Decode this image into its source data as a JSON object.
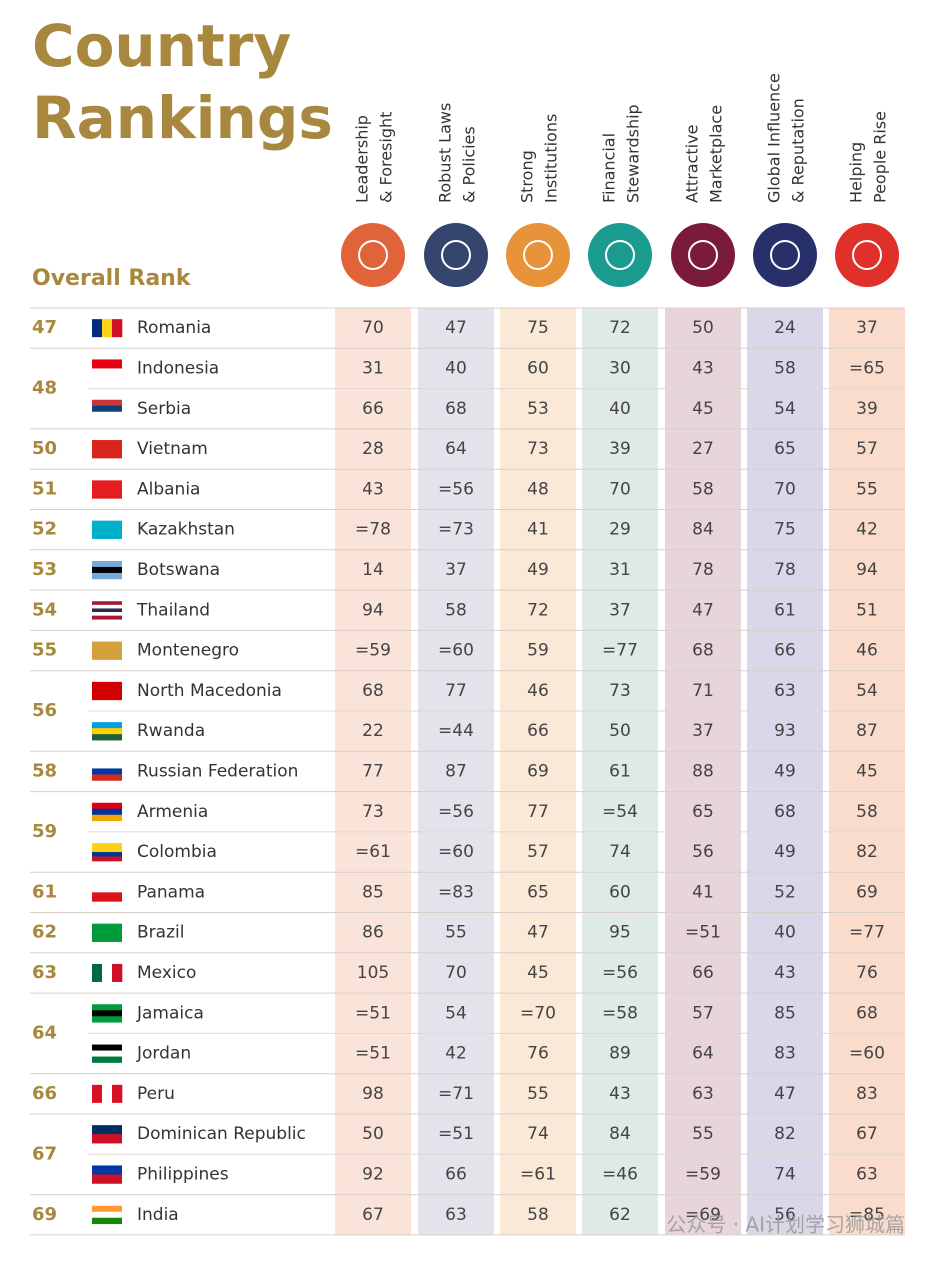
{
  "header": {
    "title": [
      "Country",
      "Rankings"
    ],
    "rank_label": "Overall Rank",
    "columns": [
      [
        "Leadership",
        "& Foresight"
      ],
      [
        "Robust Laws",
        "& Policies"
      ],
      [
        "Strong",
        "Institutions"
      ],
      [
        "Financial",
        "Stewardship"
      ],
      [
        "Attractive",
        "Marketplace"
      ],
      [
        "Global Influence",
        "& Reputation"
      ],
      [
        "Helping",
        "People Rise"
      ]
    ]
  },
  "groups": [
    {
      "rank": "47",
      "rows": [
        {
          "country": "Romania",
          "scores": [
            "70",
            "47",
            "75",
            "72",
            "50",
            "24",
            "37"
          ]
        }
      ]
    },
    {
      "rank": "48",
      "rows": [
        {
          "country": "Indonesia",
          "scores": [
            "31",
            "40",
            "60",
            "30",
            "43",
            "58",
            "=65"
          ]
        },
        {
          "country": "Serbia",
          "scores": [
            "66",
            "68",
            "53",
            "40",
            "45",
            "54",
            "39"
          ]
        }
      ]
    },
    {
      "rank": "50",
      "rows": [
        {
          "country": "Vietnam",
          "scores": [
            "28",
            "64",
            "73",
            "39",
            "27",
            "65",
            "57"
          ]
        }
      ]
    },
    {
      "rank": "51",
      "rows": [
        {
          "country": "Albania",
          "scores": [
            "43",
            "=56",
            "48",
            "70",
            "58",
            "70",
            "55"
          ]
        }
      ]
    },
    {
      "rank": "52",
      "rows": [
        {
          "country": "Kazakhstan",
          "scores": [
            "=78",
            "=73",
            "41",
            "29",
            "84",
            "75",
            "42"
          ]
        }
      ]
    },
    {
      "rank": "53",
      "rows": [
        {
          "country": "Botswana",
          "scores": [
            "14",
            "37",
            "49",
            "31",
            "78",
            "78",
            "94"
          ]
        }
      ]
    },
    {
      "rank": "54",
      "rows": [
        {
          "country": "Thailand",
          "scores": [
            "94",
            "58",
            "72",
            "37",
            "47",
            "61",
            "51"
          ]
        }
      ]
    },
    {
      "rank": "55",
      "rows": [
        {
          "country": "Montenegro",
          "scores": [
            "=59",
            "=60",
            "59",
            "=77",
            "68",
            "66",
            "46"
          ]
        }
      ]
    },
    {
      "rank": "56",
      "rows": [
        {
          "country": "North Macedonia",
          "scores": [
            "68",
            "77",
            "46",
            "73",
            "71",
            "63",
            "54"
          ]
        },
        {
          "country": "Rwanda",
          "scores": [
            "22",
            "=44",
            "66",
            "50",
            "37",
            "93",
            "87"
          ]
        }
      ]
    },
    {
      "rank": "58",
      "rows": [
        {
          "country": "Russian Federation",
          "scores": [
            "77",
            "87",
            "69",
            "61",
            "88",
            "49",
            "45"
          ]
        }
      ]
    },
    {
      "rank": "59",
      "rows": [
        {
          "country": "Armenia",
          "scores": [
            "73",
            "=56",
            "77",
            "=54",
            "65",
            "68",
            "58"
          ]
        },
        {
          "country": "Colombia",
          "scores": [
            "=61",
            "=60",
            "57",
            "74",
            "56",
            "49",
            "82"
          ]
        }
      ]
    },
    {
      "rank": "61",
      "rows": [
        {
          "country": "Panama",
          "scores": [
            "85",
            "=83",
            "65",
            "60",
            "41",
            "52",
            "69"
          ]
        }
      ]
    },
    {
      "rank": "62",
      "rows": [
        {
          "country": "Brazil",
          "scores": [
            "86",
            "55",
            "47",
            "95",
            "=51",
            "40",
            "=77"
          ]
        }
      ]
    },
    {
      "rank": "63",
      "rows": [
        {
          "country": "Mexico",
          "scores": [
            "105",
            "70",
            "45",
            "=56",
            "66",
            "43",
            "76"
          ]
        }
      ]
    },
    {
      "rank": "64",
      "rows": [
        {
          "country": "Jamaica",
          "scores": [
            "=51",
            "54",
            "=70",
            "=58",
            "57",
            "85",
            "68"
          ]
        },
        {
          "country": "Jordan",
          "scores": [
            "=51",
            "42",
            "76",
            "89",
            "64",
            "83",
            "=60"
          ]
        }
      ]
    },
    {
      "rank": "66",
      "rows": [
        {
          "country": "Peru",
          "scores": [
            "98",
            "=71",
            "55",
            "43",
            "63",
            "47",
            "83"
          ]
        }
      ]
    },
    {
      "rank": "67",
      "rows": [
        {
          "country": "Dominican Republic",
          "scores": [
            "50",
            "=51",
            "74",
            "84",
            "55",
            "82",
            "67"
          ]
        },
        {
          "country": "Philippines",
          "scores": [
            "92",
            "66",
            "=61",
            "=46",
            "=59",
            "74",
            "63"
          ]
        }
      ]
    },
    {
      "rank": "69",
      "rows": [
        {
          "country": "India",
          "scores": [
            "67",
            "63",
            "58",
            "62",
            "=69",
            "56",
            "=85"
          ]
        }
      ]
    }
  ],
  "watermark": "公众号 · AI计划学习狮城篇"
}
